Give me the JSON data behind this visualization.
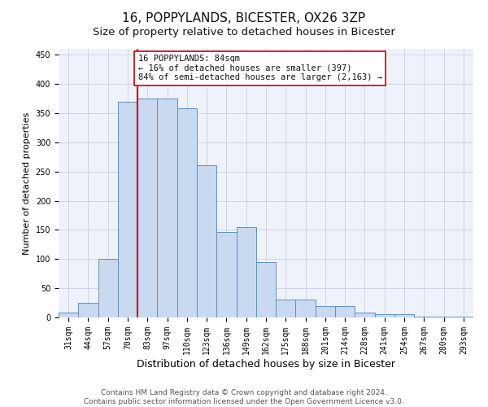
{
  "title": "16, POPPYLANDS, BICESTER, OX26 3ZP",
  "subtitle": "Size of property relative to detached houses in Bicester",
  "xlabel": "Distribution of detached houses by size in Bicester",
  "ylabel": "Number of detached properties",
  "categories": [
    "31sqm",
    "44sqm",
    "57sqm",
    "70sqm",
    "83sqm",
    "97sqm",
    "110sqm",
    "123sqm",
    "136sqm",
    "149sqm",
    "162sqm",
    "175sqm",
    "188sqm",
    "201sqm",
    "214sqm",
    "228sqm",
    "241sqm",
    "254sqm",
    "267sqm",
    "280sqm",
    "293sqm"
  ],
  "values": [
    8,
    25,
    100,
    370,
    375,
    375,
    358,
    260,
    146,
    155,
    95,
    30,
    30,
    20,
    20,
    8,
    5,
    5,
    2,
    2,
    1
  ],
  "bar_color": "#c9d9f0",
  "bar_edge_color": "#6090c0",
  "grid_color": "#c8cfe0",
  "background_color": "#eef3fb",
  "red_line_index": 4,
  "annotation_text": "16 POPPYLANDS: 84sqm\n← 16% of detached houses are smaller (397)\n84% of semi-detached houses are larger (2,163) →",
  "annotation_box_color": "#ffffff",
  "annotation_box_edge_color": "#cc0000",
  "annotation_text_color": "#111111",
  "red_line_color": "#cc0000",
  "ylim": [
    0,
    460
  ],
  "yticks": [
    0,
    50,
    100,
    150,
    200,
    250,
    300,
    350,
    400,
    450
  ],
  "footer_line1": "Contains HM Land Registry data © Crown copyright and database right 2024.",
  "footer_line2": "Contains public sector information licensed under the Open Government Licence v3.0.",
  "title_fontsize": 11,
  "subtitle_fontsize": 9.5,
  "xlabel_fontsize": 9,
  "ylabel_fontsize": 8,
  "tick_fontsize": 7,
  "annot_fontsize": 7.5,
  "footer_fontsize": 6.5
}
